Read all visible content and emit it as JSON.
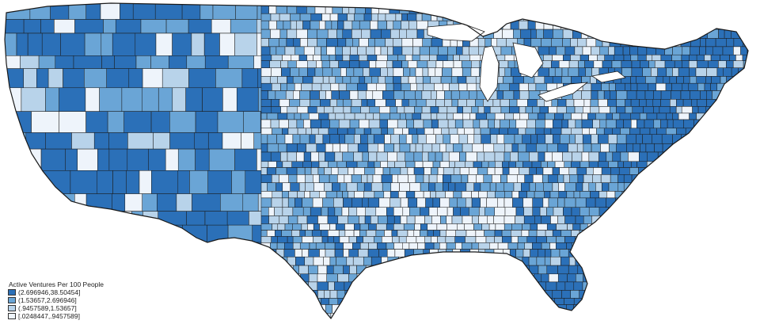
{
  "map": {
    "legend": {
      "title": "Active Ventures Per 100 People",
      "classes": [
        {
          "label": "(2.696946,38.50454]",
          "color": "#2b70b8"
        },
        {
          "label": "(1.53657,2.696946]",
          "color": "#6aa5d6"
        },
        {
          "label": "(.9457589,1.53657]",
          "color": "#b8d3ea"
        },
        {
          "label": "[.0248447,.9457589]",
          "color": "#eef4fb"
        }
      ]
    },
    "border_color": "#1a1a1a",
    "water_color": "#ffffff"
  }
}
